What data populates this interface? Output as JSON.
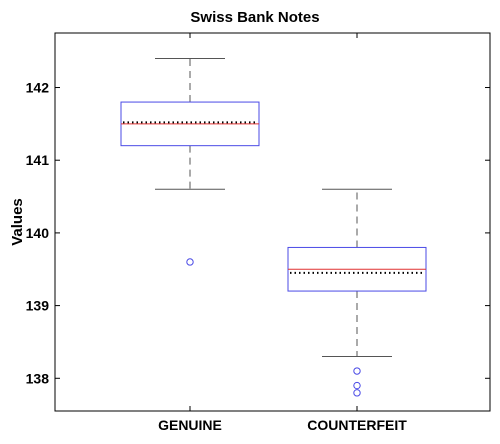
{
  "chart_data": {
    "type": "boxplot",
    "title": "Swiss Bank Notes",
    "xlabel": "",
    "ylabel": "Values",
    "categories": [
      "GENUINE",
      "COUNTERFEIT"
    ],
    "ylim": [
      137.55,
      142.75
    ],
    "yticks": [
      138,
      139,
      140,
      141,
      142
    ],
    "grid": false,
    "legend": "none",
    "boxes": [
      {
        "name": "GENUINE",
        "min": 140.6,
        "q1": 141.2,
        "median": 141.5,
        "mean": 141.52,
        "q3": 141.8,
        "max": 142.4,
        "outliers": [
          139.6
        ]
      },
      {
        "name": "COUNTERFEIT",
        "min": 138.3,
        "q1": 139.2,
        "median": 139.5,
        "mean": 139.45,
        "q3": 139.8,
        "max": 140.6,
        "outliers": [
          138.1,
          137.9,
          137.8
        ]
      }
    ],
    "colors": {
      "box": "#4a4ae6",
      "median": "#e03030",
      "mean": "#000000",
      "whisker": "#555555",
      "outlier": "#4a4ae6"
    }
  }
}
